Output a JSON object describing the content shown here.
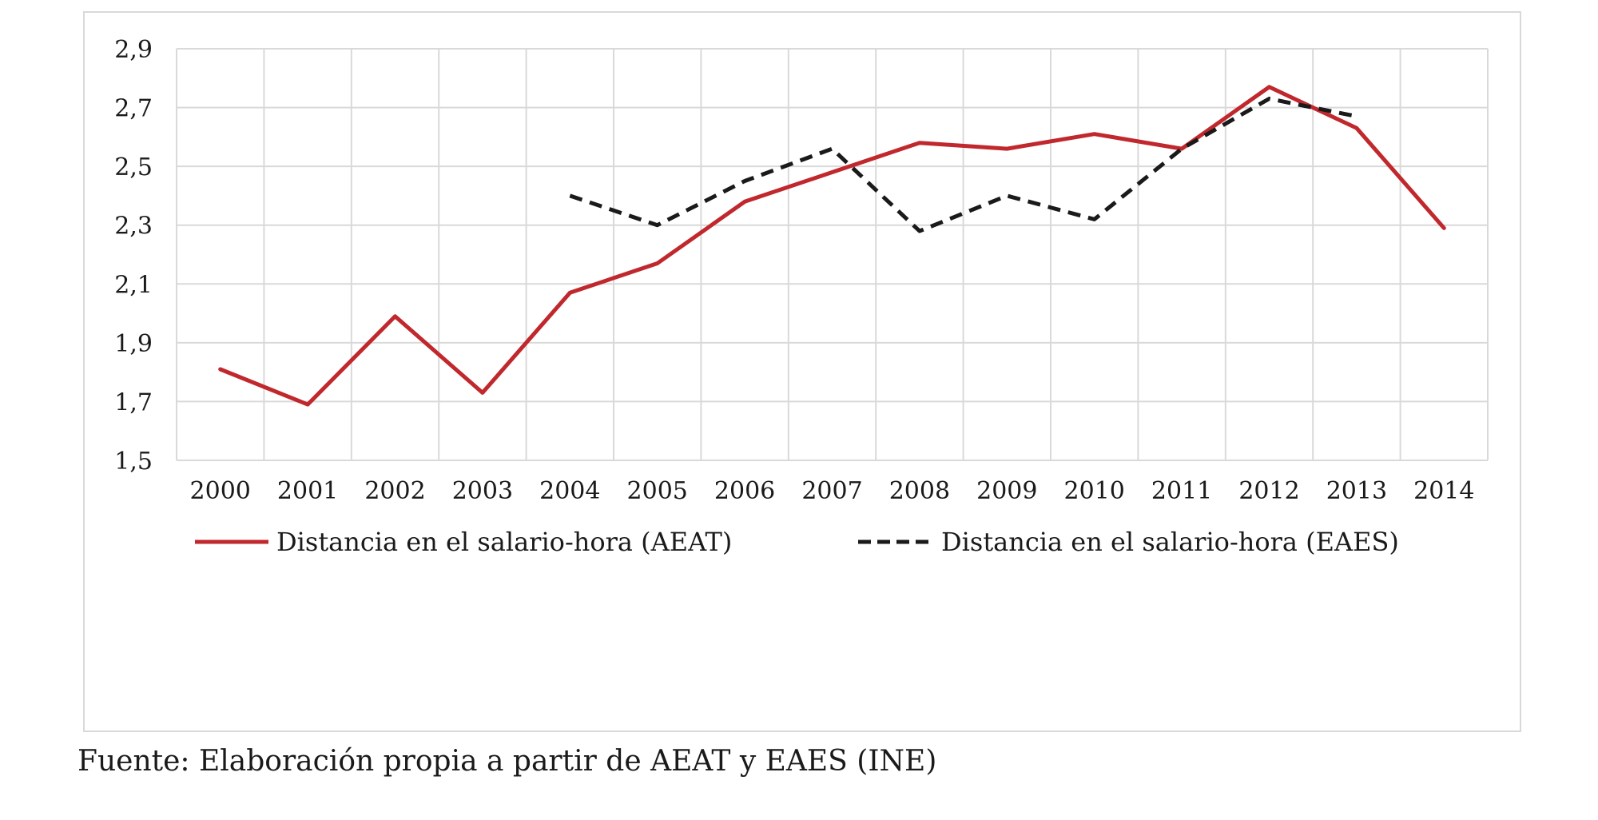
{
  "chart_data": {
    "type": "line",
    "x": [
      "2000",
      "2001",
      "2002",
      "2003",
      "2004",
      "2005",
      "2006",
      "2007",
      "2008",
      "2009",
      "2010",
      "2011",
      "2012",
      "2013",
      "2014"
    ],
    "series": [
      {
        "name": "Distancia en el salario-hora (AEAT)",
        "color": "#c0282d",
        "dash": "solid",
        "values": [
          1.81,
          1.69,
          1.99,
          1.73,
          2.07,
          2.17,
          2.38,
          2.48,
          2.58,
          2.56,
          2.61,
          2.56,
          2.77,
          2.63,
          2.29
        ]
      },
      {
        "name": "Distancia en el salario-hora (EAES)",
        "color": "#1a1a1a",
        "dash": "dashed",
        "values": [
          null,
          null,
          null,
          null,
          2.4,
          2.3,
          2.45,
          2.56,
          2.28,
          2.4,
          2.32,
          2.56,
          2.73,
          2.67,
          null
        ]
      }
    ],
    "yticks": [
      "1,5",
      "1,7",
      "1,9",
      "2,1",
      "2,3",
      "2,5",
      "2,7",
      "2,9"
    ],
    "ylim": [
      1.5,
      2.9
    ],
    "grid": true,
    "legend_position": "bottom",
    "source": "Fuente: Elaboración propia a partir de AEAT y EAES (INE)"
  }
}
